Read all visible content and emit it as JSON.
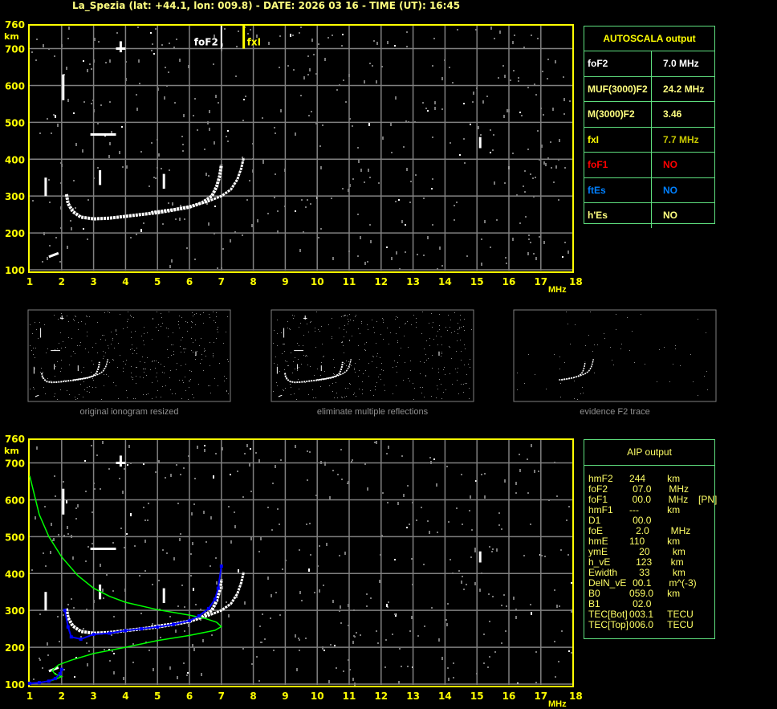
{
  "title": "La_Spezia (lat: +44.1, lon: 009.8) - DATE: 2026 03 16 - TIME (UT): 16:45",
  "colors": {
    "axis": "#ffff00",
    "grid": "#808080",
    "trace": "#ffffff",
    "profile": "#00ff00",
    "aip_points": "#0000ff",
    "table_border": "#5fe07f",
    "foF1": "#ff0000",
    "ftEs": "#0080ff",
    "fxI": "#c8c800"
  },
  "chart_data": [
    {
      "type": "scatter",
      "panel": "AUTOSCALA ionogram",
      "xlabel": "MHz",
      "ylabel": "km",
      "xlim": [
        1,
        18
      ],
      "ylim": [
        100,
        760
      ],
      "xticks": [
        "1",
        "2",
        "3",
        "4",
        "5",
        "6",
        "7",
        "8",
        "9",
        "10",
        "11",
        "12",
        "13",
        "14",
        "15",
        "16",
        "17",
        "18"
      ],
      "yticks": [
        "760",
        "700",
        "600",
        "500",
        "400",
        "300",
        "200",
        "100"
      ],
      "grid": true,
      "markers": [
        {
          "label": "foF2",
          "x": 7.0
        },
        {
          "label": "fxI",
          "x": 7.7
        }
      ],
      "o_trace": [
        [
          2.15,
          305
        ],
        [
          2.2,
          280
        ],
        [
          2.35,
          258
        ],
        [
          2.6,
          243
        ],
        [
          3.0,
          238
        ],
        [
          3.5,
          240
        ],
        [
          4.0,
          245
        ],
        [
          4.5,
          250
        ],
        [
          5.0,
          255
        ],
        [
          5.5,
          262
        ],
        [
          6.0,
          270
        ],
        [
          6.4,
          282
        ],
        [
          6.7,
          300
        ],
        [
          6.85,
          325
        ],
        [
          6.95,
          355
        ],
        [
          7.0,
          385
        ]
      ],
      "x_trace": [
        [
          4.8,
          256
        ],
        [
          5.5,
          264
        ],
        [
          6.0,
          272
        ],
        [
          6.5,
          283
        ],
        [
          7.0,
          300
        ],
        [
          7.3,
          318
        ],
        [
          7.5,
          345
        ],
        [
          7.62,
          375
        ],
        [
          7.7,
          405
        ]
      ],
      "other_echoes": [
        [
          [
            1.5,
            300
          ],
          [
            1.5,
            350
          ]
        ],
        [
          [
            2.05,
            560
          ],
          [
            2.05,
            630
          ]
        ],
        [
          [
            2.9,
            467
          ],
          [
            3.7,
            467
          ]
        ],
        [
          [
            3.2,
            330
          ],
          [
            3.2,
            370
          ]
        ],
        [
          [
            5.2,
            320
          ],
          [
            5.2,
            360
          ]
        ],
        [
          [
            15.1,
            430
          ],
          [
            15.1,
            460
          ]
        ],
        [
          [
            3.85,
            690
          ],
          [
            3.85,
            720
          ]
        ],
        [
          [
            3.7,
            700
          ],
          [
            4.0,
            700
          ]
        ],
        [
          [
            1.6,
            135
          ],
          [
            1.9,
            145
          ]
        ]
      ]
    },
    {
      "type": "line",
      "panel": "AIP ionogram",
      "xlabel": "MHz",
      "ylabel": "km",
      "xlim": [
        1,
        18
      ],
      "ylim": [
        100,
        760
      ],
      "xticks": [
        "1",
        "2",
        "3",
        "4",
        "5",
        "6",
        "7",
        "8",
        "9",
        "10",
        "11",
        "12",
        "13",
        "14",
        "15",
        "16",
        "17",
        "18"
      ],
      "yticks": [
        "760",
        "700",
        "600",
        "500",
        "400",
        "300",
        "200",
        "100"
      ],
      "grid": true,
      "profile": [
        [
          1.0,
          665
        ],
        [
          1.3,
          560
        ],
        [
          1.6,
          500
        ],
        [
          2.0,
          445
        ],
        [
          2.5,
          395
        ],
        [
          3.0,
          360
        ],
        [
          3.5,
          338
        ],
        [
          4.0,
          322
        ],
        [
          5.0,
          302
        ],
        [
          6.0,
          287
        ],
        [
          6.5,
          278
        ],
        [
          6.85,
          268
        ],
        [
          7.0,
          256
        ],
        [
          6.8,
          246
        ],
        [
          6.0,
          232
        ],
        [
          5.0,
          218
        ],
        [
          4.0,
          200
        ],
        [
          3.0,
          183
        ],
        [
          2.3,
          165
        ],
        [
          1.9,
          152
        ],
        [
          1.7,
          137
        ],
        [
          1.8,
          127
        ],
        [
          2.0,
          120
        ],
        [
          1.7,
          110
        ],
        [
          1.3,
          104
        ],
        [
          1.0,
          102
        ]
      ],
      "aip_points": [
        [
          1.0,
          102
        ],
        [
          1.3,
          104
        ],
        [
          1.6,
          108
        ],
        [
          1.8,
          115
        ],
        [
          1.95,
          128
        ],
        [
          2.0,
          140
        ],
        [
          2.1,
          300
        ],
        [
          2.2,
          255
        ],
        [
          2.3,
          228
        ],
        [
          2.6,
          222
        ],
        [
          3.0,
          235
        ],
        [
          3.5,
          238
        ],
        [
          4.0,
          245
        ],
        [
          4.5,
          250
        ],
        [
          5.0,
          255
        ],
        [
          5.5,
          262
        ],
        [
          6.0,
          272
        ],
        [
          6.3,
          285
        ],
        [
          6.6,
          305
        ],
        [
          6.8,
          330
        ],
        [
          6.9,
          360
        ],
        [
          7.0,
          420
        ]
      ]
    }
  ],
  "thumbnails": [
    {
      "caption": "original ionogram resized"
    },
    {
      "caption": "eliminate multiple reflections"
    },
    {
      "caption": "evidence F2 trace"
    }
  ],
  "autoscala": {
    "header": "AUTOSCALA output",
    "rows": [
      {
        "key": "foF2",
        "value": "7.0 MHz",
        "color": "#ffffff"
      },
      {
        "key": "MUF(3000)F2",
        "value": "24.2 MHz",
        "color": "#ffff80"
      },
      {
        "key": "M(3000)F2",
        "value": "3.46",
        "color": "#ffff80"
      },
      {
        "key": "fxI",
        "value": "7.7 MHz",
        "color": "#ffff00",
        "value_color": "#c8c800"
      },
      {
        "key": "foF1",
        "value": "NO",
        "color": "#ff0000"
      },
      {
        "key": "ftEs",
        "value": "NO",
        "color": "#0080ff"
      },
      {
        "key": "h'Es",
        "value": "NO",
        "color": "#ffff80"
      }
    ]
  },
  "aip": {
    "header": "AIP output",
    "rows": [
      [
        "hmF2",
        "244",
        "km",
        ""
      ],
      [
        "foF2",
        "07.0",
        "MHz",
        ""
      ],
      [
        "foF1",
        "00.0",
        "MHz",
        "[PN]"
      ],
      [
        "hmF1",
        "---",
        "km",
        ""
      ],
      [
        "D1",
        "00.0",
        "",
        ""
      ],
      [
        "foE",
        "2.0",
        "MHz",
        ""
      ],
      [
        "hmE",
        "110",
        "km",
        ""
      ],
      [
        "ymE",
        "20",
        "km",
        ""
      ],
      [
        "h_vE",
        "123",
        "km",
        ""
      ],
      [
        "Ewidth",
        "33",
        "km",
        ""
      ],
      [
        "DelN_vE",
        "00.1",
        "m^(-3)",
        ""
      ],
      [
        "B0",
        "059.0",
        "km",
        ""
      ],
      [
        "B1",
        "02.0",
        "",
        ""
      ],
      [
        "TEC[Bot]",
        "003.1",
        "TECU",
        ""
      ],
      [
        "TEC[Top]",
        "006.0",
        "TECU",
        ""
      ]
    ]
  }
}
